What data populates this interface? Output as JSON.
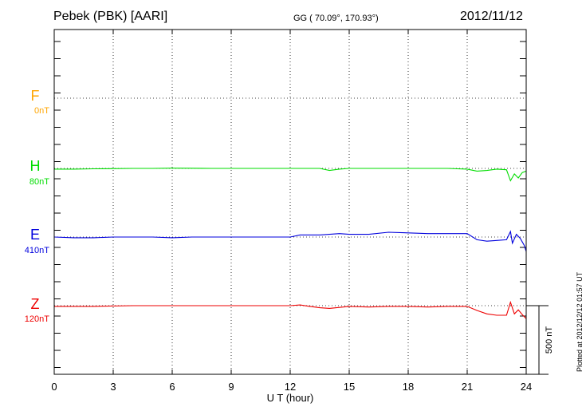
{
  "header": {
    "station": "Pebek (PBK)  [AARI]",
    "coords": "GG ( 70.09°, 170.93°)",
    "date": "2012/11/12"
  },
  "footer": {
    "plotted": "Plotted at 2012/12/12 01:57 UT"
  },
  "chart_data": {
    "type": "line",
    "xlabel": "U T (hour)",
    "xlim": [
      0,
      24
    ],
    "xticks": [
      0,
      3,
      6,
      9,
      12,
      15,
      18,
      21,
      24
    ],
    "scale_bar": "500 nT",
    "series": [
      {
        "name": "F",
        "base": "0nT",
        "color": "#ffa500",
        "x": [],
        "y": []
      },
      {
        "name": "H",
        "base": "80nT",
        "color": "#00dd00",
        "x": [
          0,
          1,
          2,
          3,
          4,
          5,
          6,
          7,
          8,
          9,
          10,
          11,
          12,
          13,
          13.5,
          14,
          14.5,
          15,
          16,
          17,
          18,
          19,
          20,
          21,
          21.5,
          22,
          22.5,
          23,
          23.2,
          23.4,
          23.6,
          23.8,
          24
        ],
        "y": [
          -5,
          -5,
          -3,
          -2,
          0,
          0,
          2,
          1,
          0,
          0,
          0,
          0,
          0,
          0,
          0,
          -15,
          -5,
          0,
          0,
          0,
          0,
          0,
          0,
          -5,
          -20,
          -15,
          -5,
          -10,
          -90,
          -40,
          -70,
          -30,
          -20
        ]
      },
      {
        "name": "E",
        "base": "410nT",
        "color": "#0000dd",
        "x": [
          0,
          1,
          2,
          3,
          4,
          5,
          6,
          7,
          8,
          9,
          10,
          11,
          12,
          12.5,
          13,
          13.5,
          14,
          14.5,
          15,
          16,
          17,
          18,
          19,
          20,
          21,
          21.5,
          22,
          22.5,
          23,
          23.2,
          23.3,
          23.5,
          23.7,
          23.9,
          24
        ],
        "y": [
          0,
          -5,
          -5,
          0,
          0,
          0,
          -5,
          0,
          0,
          0,
          0,
          0,
          0,
          15,
          15,
          15,
          20,
          25,
          20,
          20,
          35,
          30,
          25,
          25,
          25,
          -20,
          -30,
          -25,
          -20,
          40,
          -45,
          20,
          -10,
          -60,
          -105
        ]
      },
      {
        "name": "Z",
        "base": "120nT",
        "color": "#ee0000",
        "x": [
          0,
          2,
          4,
          6,
          8,
          10,
          12,
          12.5,
          13,
          13.5,
          14,
          15,
          16,
          17,
          18,
          19,
          20,
          21,
          21.5,
          22,
          22.5,
          23,
          23.2,
          23.4,
          23.6,
          23.8,
          24
        ],
        "y": [
          -5,
          -5,
          0,
          0,
          0,
          0,
          0,
          5,
          -5,
          -15,
          -20,
          -5,
          -10,
          -5,
          -5,
          -10,
          -5,
          -5,
          -35,
          -60,
          -70,
          -70,
          25,
          -60,
          -30,
          -65,
          -95
        ]
      }
    ]
  }
}
